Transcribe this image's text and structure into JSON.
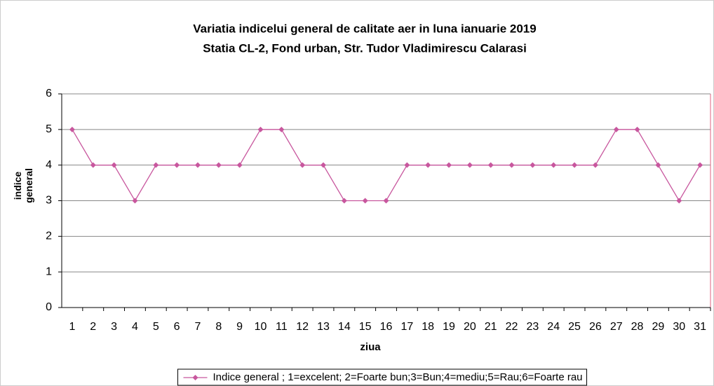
{
  "chart_data": {
    "type": "line",
    "title": "Variatia indicelui general de calitate aer in luna ianuarie 2019",
    "subtitle": "Statia CL-2, Fond urban,  Str. Tudor Vladimirescu Calarasi",
    "x_label": "ziua",
    "y_label": "indice general",
    "categories": [
      "1",
      "2",
      "3",
      "4",
      "5",
      "6",
      "7",
      "8",
      "9",
      "10",
      "11",
      "12",
      "13",
      "14",
      "15",
      "16",
      "17",
      "18",
      "19",
      "20",
      "21",
      "22",
      "23",
      "24",
      "25",
      "26",
      "27",
      "28",
      "29",
      "30",
      "31"
    ],
    "series": [
      {
        "name": "Indice  general ; 1=excelent; 2=Foarte bun;3=Bun;4=mediu;5=Rau;6=Foarte rau",
        "color": "#c8579e",
        "values": [
          5,
          4,
          4,
          3,
          4,
          4,
          4,
          4,
          4,
          5,
          5,
          4,
          4,
          3,
          3,
          3,
          4,
          4,
          4,
          4,
          4,
          4,
          4,
          4,
          4,
          4,
          5,
          5,
          4,
          3,
          4
        ]
      }
    ],
    "ylim": [
      0,
      6
    ],
    "yticks": [
      0,
      1,
      2,
      3,
      4,
      5,
      6
    ],
    "grid": true,
    "legend": "bottom"
  }
}
